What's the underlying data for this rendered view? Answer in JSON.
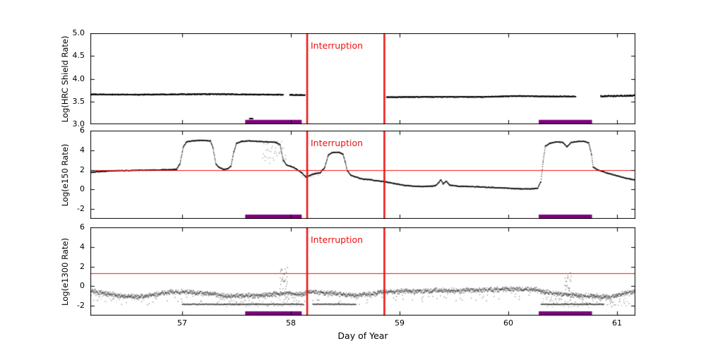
{
  "figure": {
    "xlabel": "Day of Year",
    "xlim": [
      56.156,
      61.169
    ],
    "xtick_values": [
      57,
      58,
      59,
      60,
      61
    ],
    "xtick_labels": [
      "57",
      "58",
      "59",
      "60",
      "61"
    ],
    "interruption": {
      "label": "Interruption",
      "lines": [
        58.15,
        58.86
      ]
    },
    "bars": [
      [
        57.58,
        58.1
      ],
      [
        60.28,
        60.77
      ]
    ],
    "colors": {
      "data": "#000000",
      "interruption": "#ee1111",
      "threshold": "#ee1111",
      "bar": "#800080",
      "frame": "#000000",
      "background": "#ffffff"
    }
  },
  "chart_data": [
    {
      "type": "scatter",
      "name": "hrc-shield-rate",
      "ylabel": "Log(HRC Shield Rate)",
      "ylim": [
        3.0,
        5.0
      ],
      "ytick_values": [
        3.0,
        3.5,
        4.0,
        4.5,
        5.0
      ],
      "ytick_labels": [
        "3.0",
        "3.5",
        "4.0",
        "4.5",
        "5.0"
      ],
      "threshold": null,
      "bar_y": 3.05,
      "dot_size": 1.5,
      "dot_alpha": 1.0,
      "segments": [
        {
          "step": 0.0025,
          "noise": 0.012,
          "points": [
            [
              56.16,
              3.655
            ],
            [
              56.6,
              3.65
            ],
            [
              57.0,
              3.66
            ],
            [
              57.4,
              3.66
            ],
            [
              57.7,
              3.65
            ],
            [
              57.93,
              3.65
            ]
          ]
        },
        {
          "step": 0.0025,
          "noise": 0.012,
          "points": [
            [
              57.99,
              3.645
            ],
            [
              58.13,
              3.64
            ]
          ]
        },
        {
          "step": 0.0025,
          "noise": 0.01,
          "points": [
            [
              57.62,
              3.12
            ],
            [
              57.65,
              3.12
            ]
          ]
        },
        {
          "step": 0.0025,
          "noise": 0.01,
          "points": [
            [
              58.88,
              3.595
            ],
            [
              59.3,
              3.6
            ],
            [
              59.75,
              3.6
            ],
            [
              60.1,
              3.62
            ],
            [
              60.4,
              3.61
            ],
            [
              60.62,
              3.61
            ]
          ]
        },
        {
          "step": 0.0025,
          "noise": 0.018,
          "points": [
            [
              60.85,
              3.615
            ],
            [
              61.0,
              3.62
            ],
            [
              61.17,
              3.63
            ]
          ]
        }
      ],
      "sparse": []
    },
    {
      "type": "scatter",
      "name": "e150-rate",
      "ylabel": "Log(e150  Rate)",
      "ylim": [
        -3,
        6
      ],
      "ytick_values": [
        -2,
        0,
        2,
        4,
        6
      ],
      "ytick_labels": [
        "-2",
        "0",
        "2",
        "4",
        "6"
      ],
      "threshold": 2.0,
      "bar_y": -2.78,
      "dot_size": 1.3,
      "dot_alpha": 0.8,
      "segments": [
        {
          "step": 0.0025,
          "noise": 0.06,
          "points": [
            [
              56.16,
              1.75
            ],
            [
              56.35,
              1.9
            ],
            [
              56.6,
              1.95
            ],
            [
              56.85,
              2.0
            ],
            [
              56.95,
              2.05
            ],
            [
              56.98,
              2.6
            ],
            [
              57.01,
              4.3
            ],
            [
              57.04,
              4.85
            ],
            [
              57.1,
              4.95
            ],
            [
              57.18,
              5.0
            ],
            [
              57.26,
              4.95
            ],
            [
              57.285,
              4.2
            ],
            [
              57.31,
              2.6
            ],
            [
              57.34,
              2.25
            ],
            [
              57.38,
              2.05
            ],
            [
              57.42,
              2.1
            ],
            [
              57.45,
              2.4
            ],
            [
              57.475,
              3.8
            ],
            [
              57.5,
              4.7
            ],
            [
              57.55,
              4.9
            ],
            [
              57.62,
              4.95
            ],
            [
              57.7,
              4.9
            ],
            [
              57.78,
              4.85
            ],
            [
              57.86,
              4.8
            ],
            [
              57.9,
              4.6
            ],
            [
              57.93,
              3.0
            ],
            [
              57.96,
              2.5
            ],
            [
              58.0,
              2.35
            ],
            [
              58.05,
              2.1
            ],
            [
              58.1,
              1.7
            ],
            [
              58.14,
              1.25
            ],
            [
              58.18,
              1.45
            ],
            [
              58.22,
              1.6
            ],
            [
              58.27,
              1.7
            ],
            [
              58.31,
              2.2
            ],
            [
              58.345,
              3.5
            ],
            [
              58.38,
              3.75
            ],
            [
              58.44,
              3.8
            ],
            [
              58.48,
              3.6
            ],
            [
              58.5,
              2.8
            ],
            [
              58.52,
              1.9
            ],
            [
              58.55,
              1.45
            ],
            [
              58.6,
              1.25
            ],
            [
              58.66,
              1.05
            ],
            [
              58.72,
              1.0
            ],
            [
              58.78,
              0.9
            ],
            [
              58.86,
              0.8
            ],
            [
              58.95,
              0.6
            ],
            [
              59.05,
              0.4
            ],
            [
              59.15,
              0.32
            ],
            [
              59.25,
              0.3
            ],
            [
              59.33,
              0.38
            ],
            [
              59.36,
              0.7
            ],
            [
              59.38,
              1.0
            ],
            [
              59.4,
              0.55
            ],
            [
              59.43,
              0.85
            ],
            [
              59.46,
              0.45
            ],
            [
              59.55,
              0.32
            ],
            [
              59.7,
              0.28
            ],
            [
              59.85,
              0.2
            ],
            [
              60.0,
              0.12
            ],
            [
              60.1,
              0.06
            ],
            [
              60.2,
              0.05
            ],
            [
              60.27,
              0.12
            ],
            [
              60.3,
              0.8
            ],
            [
              60.32,
              2.8
            ],
            [
              60.34,
              4.4
            ],
            [
              60.38,
              4.7
            ],
            [
              60.44,
              4.85
            ],
            [
              60.5,
              4.8
            ],
            [
              60.54,
              4.35
            ],
            [
              60.58,
              4.8
            ],
            [
              60.64,
              4.9
            ],
            [
              60.7,
              4.9
            ],
            [
              60.74,
              4.75
            ],
            [
              60.765,
              3.6
            ],
            [
              60.78,
              2.3
            ],
            [
              60.82,
              2.0
            ],
            [
              60.9,
              1.7
            ],
            [
              61.0,
              1.4
            ],
            [
              61.08,
              1.15
            ],
            [
              61.17,
              0.95
            ]
          ]
        }
      ],
      "sparse": [
        {
          "x0": 57.74,
          "x1": 57.96,
          "y0": 2.6,
          "y1": 4.9,
          "step": 0.006,
          "alpha": 0.35
        },
        {
          "x0": 58.1,
          "x1": 58.3,
          "y0": 1.1,
          "y1": 2.0,
          "step": 0.012,
          "alpha": 0.3
        }
      ]
    },
    {
      "type": "scatter",
      "name": "e1300-rate",
      "ylabel": "Log(e1300 Rate)",
      "ylim": [
        -3,
        6
      ],
      "ytick_values": [
        -2,
        0,
        2,
        4,
        6
      ],
      "ytick_labels": [
        "-2",
        "0",
        "2",
        "4",
        "6"
      ],
      "threshold": 1.3,
      "bar_y": -2.78,
      "dot_size": 1.5,
      "dot_alpha": 0.38,
      "segments": [
        {
          "step": 0.002,
          "noise": 0.3,
          "tail": 0.06,
          "tail_depth": 1.0,
          "points": [
            [
              56.16,
              -0.5
            ],
            [
              56.3,
              -0.75
            ],
            [
              56.45,
              -1.05
            ],
            [
              56.6,
              -1.1
            ],
            [
              56.75,
              -0.85
            ],
            [
              56.9,
              -0.6
            ],
            [
              57.0,
              -0.6
            ],
            [
              57.1,
              -0.65
            ],
            [
              57.25,
              -0.8
            ],
            [
              57.4,
              -1.0
            ],
            [
              57.55,
              -1.0
            ],
            [
              57.7,
              -0.95
            ],
            [
              57.85,
              -0.8
            ],
            [
              57.98,
              -0.7
            ],
            [
              58.05,
              -0.85
            ],
            [
              58.12,
              -0.8
            ],
            [
              58.17,
              -0.6
            ],
            [
              58.3,
              -0.65
            ],
            [
              58.45,
              -0.8
            ],
            [
              58.6,
              -0.95
            ],
            [
              58.7,
              -0.85
            ],
            [
              58.8,
              -0.65
            ],
            [
              58.86,
              -0.6
            ],
            [
              58.95,
              -0.55
            ],
            [
              59.1,
              -0.5
            ],
            [
              59.3,
              -0.45
            ],
            [
              59.5,
              -0.45
            ],
            [
              59.7,
              -0.4
            ],
            [
              59.9,
              -0.35
            ],
            [
              60.1,
              -0.3
            ],
            [
              60.25,
              -0.35
            ],
            [
              60.35,
              -0.6
            ],
            [
              60.45,
              -0.8
            ],
            [
              60.55,
              -0.85
            ],
            [
              60.65,
              -0.95
            ],
            [
              60.78,
              -1.0
            ],
            [
              60.9,
              -1.15
            ],
            [
              61.0,
              -0.95
            ],
            [
              61.08,
              -0.7
            ],
            [
              61.17,
              -0.5
            ]
          ]
        },
        {
          "step": 0.003,
          "noise": 0.07,
          "points": [
            [
              57.0,
              -1.85
            ],
            [
              58.12,
              -1.85
            ]
          ]
        },
        {
          "step": 0.003,
          "noise": 0.07,
          "points": [
            [
              58.2,
              -1.85
            ],
            [
              58.6,
              -1.85
            ]
          ]
        },
        {
          "step": 0.003,
          "noise": 0.07,
          "points": [
            [
              60.3,
              -1.85
            ],
            [
              60.88,
              -1.85
            ]
          ]
        }
      ],
      "sparse": [
        {
          "x0": 57.9,
          "x1": 57.97,
          "y0": -0.3,
          "y1": 2.0,
          "step": 0.0025,
          "alpha": 0.45
        },
        {
          "x0": 60.52,
          "x1": 60.58,
          "y0": -0.5,
          "y1": 1.4,
          "step": 0.003,
          "alpha": 0.45
        },
        {
          "x0": 57.35,
          "x1": 58.1,
          "y0": -2.1,
          "y1": -0.9,
          "step": 0.01,
          "alpha": 0.3
        },
        {
          "x0": 60.3,
          "x1": 61.1,
          "y0": -2.2,
          "y1": -0.7,
          "step": 0.008,
          "alpha": 0.3
        },
        {
          "x0": 56.18,
          "x1": 56.7,
          "y0": -1.7,
          "y1": -0.8,
          "step": 0.012,
          "alpha": 0.25
        }
      ]
    }
  ]
}
